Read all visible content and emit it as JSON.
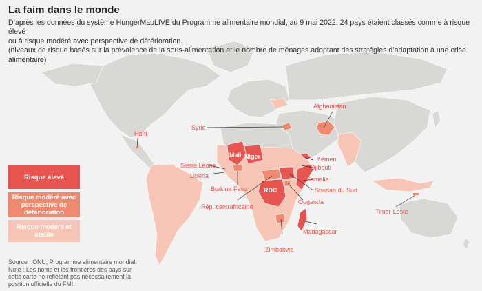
{
  "title": "La faim dans le monde",
  "subtitle": [
    "D’après les données du système HungerMapLIVE du Programme alimentaire mondial, au 9 mai 2022, 24 pays étaient classés comme à risque élevé",
    "ou à risque modéré avec perspective de détérioration.",
    "(niveaux de risque basés sur la prévalence de la sous-alimentation et le nombre de ménages adoptant des stratégies d’adaptation à une crise alimentaire)"
  ],
  "legend": {
    "high": "Risque élevé",
    "moderate_worsening": "Risque modéré avec perspective de détérioration",
    "moderate_stable": "Risque modéré et stable"
  },
  "colors": {
    "high": "#e6554f",
    "moderate_worsening": "#ef8a70",
    "moderate_stable": "#f7c5b5",
    "land": "#d8d8d4",
    "background": "#f2f2f2"
  },
  "source": "Source : ONU, Programme alimentaire mondial.",
  "note": "Note : Les noms et les frontières des pays sur cette carte ne reflètent pas nécessairement la position officielle du FMI.",
  "countries": {
    "haiti": "Haïti",
    "syrie": "Syrie",
    "afghanistan": "Afghanistan",
    "mali": "Mali",
    "niger": "Niger",
    "sierra_leone": "Sierra Leone",
    "liberia": "Libéria",
    "burkina": "Burkina Faso",
    "rca": "Rép. centrafricaine",
    "rdc": "RDC",
    "yemen": "Yémen",
    "djibouti": "Djibouti",
    "somalie": "Somalie",
    "soudan_sud": "Soudan du Sud",
    "ouganda": "Ouganda",
    "madagascar": "Madagascar",
    "zimbabwe": "Zimbabwe",
    "timor": "Timor-Leste"
  }
}
